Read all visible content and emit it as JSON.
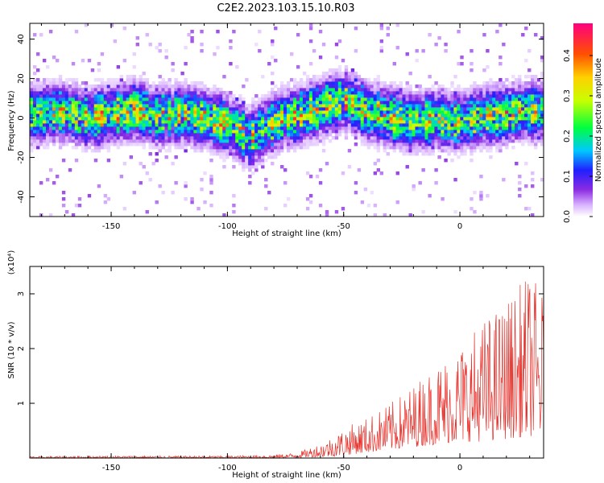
{
  "title": "C2E2.2023.103.15.10.R03",
  "colors": {
    "snr_line": "#e8302a",
    "axes": "#000000",
    "background": "#ffffff"
  },
  "chart_data": [
    {
      "type": "heatmap",
      "title": "C2E2.2023.103.15.10.R03",
      "xlabel": "Height of straight line (km)",
      "ylabel": "Frequency (Hz)",
      "xlim": [
        -185,
        36
      ],
      "ylim": [
        -50,
        48
      ],
      "xticks": [
        -150,
        -100,
        -50,
        0
      ],
      "yticks": [
        -40,
        -20,
        0,
        20,
        40
      ],
      "colorbar": {
        "label": "Normalized spectral amplitude",
        "range": [
          0.0,
          0.48
        ],
        "ticks": [
          0.0,
          0.1,
          0.2,
          0.3,
          0.4
        ],
        "colormap": "rainbow (white-violet-blue-cyan-green-yellow-red-magenta)"
      },
      "ridge": {
        "x": [
          -185,
          -170,
          -160,
          -150,
          -140,
          -130,
          -120,
          -110,
          -100,
          -95,
          -90,
          -85,
          -80,
          -75,
          -70,
          -60,
          -50,
          -45,
          -40,
          -30,
          -20,
          -10,
          0,
          10,
          20,
          30,
          36
        ],
        "y": [
          2,
          3,
          0,
          2,
          4,
          1,
          2,
          0,
          -3,
          -6,
          -10,
          -6,
          -2,
          0,
          1,
          5,
          9,
          7,
          3,
          1,
          -2,
          -1,
          -2,
          1,
          2,
          4,
          3
        ]
      },
      "band_halfwidth_hz": 10,
      "peak_amplitude": 0.45
    },
    {
      "type": "line",
      "title": "",
      "xlabel": "Height of straight line (km)",
      "ylabel": "SNR (10 * v/v)",
      "y_multiplier": "(x10⁴)",
      "xlim": [
        -185,
        36
      ],
      "ylim": [
        0,
        3.5
      ],
      "xticks": [
        -150,
        -100,
        -50,
        0
      ],
      "yticks": [
        1,
        2,
        3
      ],
      "envelope": {
        "x": [
          -185,
          -150,
          -120,
          -100,
          -80,
          -70,
          -60,
          -55,
          -50,
          -40,
          -30,
          -20,
          -10,
          0,
          10,
          20,
          30,
          36
        ],
        "y_max": [
          0.03,
          0.04,
          0.04,
          0.04,
          0.06,
          0.1,
          0.28,
          0.4,
          0.55,
          0.75,
          1.0,
          1.35,
          1.75,
          2.1,
          2.55,
          2.9,
          3.4,
          3.0
        ],
        "y_min": [
          0.0,
          0.0,
          0.0,
          0.0,
          0.0,
          0.01,
          0.02,
          0.03,
          0.05,
          0.1,
          0.15,
          0.2,
          0.25,
          0.3,
          0.3,
          0.35,
          0.4,
          0.4
        ]
      }
    }
  ]
}
